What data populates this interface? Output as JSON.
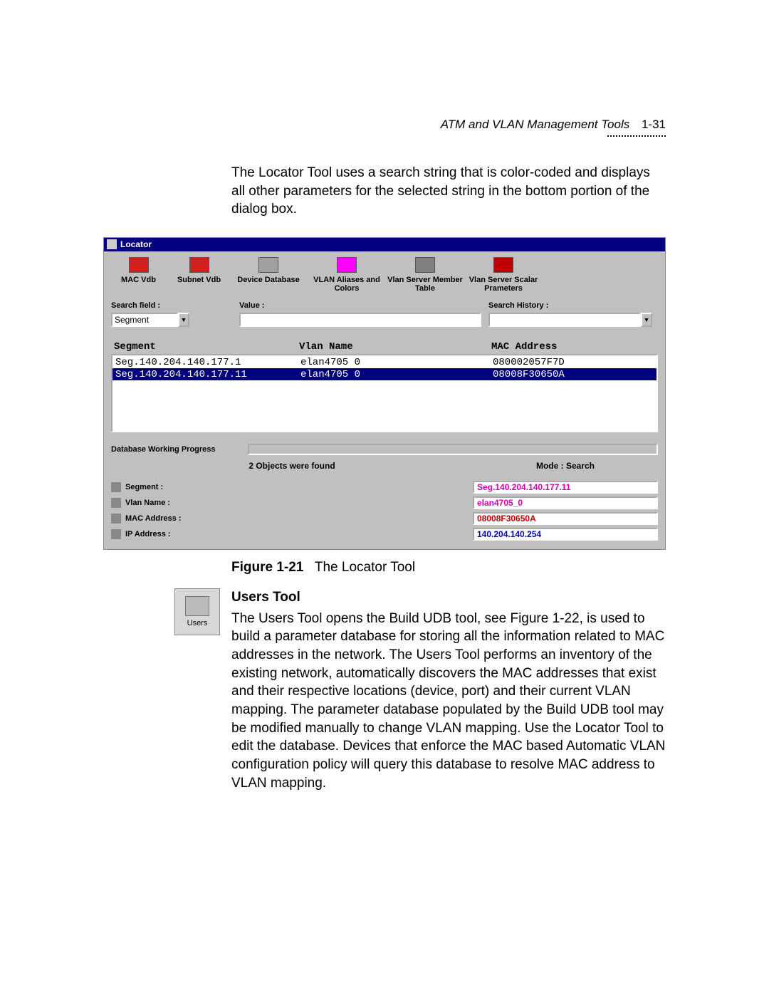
{
  "header": {
    "title": "ATM and VLAN Management Tools",
    "page": "1-31"
  },
  "intro": "The Locator Tool uses a search string that is color-coded and displays all other parameters for the selected string in the bottom portion of the dialog box.",
  "window": {
    "title": "Locator",
    "toolbar": [
      {
        "label": "MAC Vdb",
        "glyph_bg": "#d02020"
      },
      {
        "label": "Subnet Vdb",
        "glyph_bg": "#d02020"
      },
      {
        "label": "Device Database",
        "glyph_bg": "#a0a0a0"
      },
      {
        "label": "VLAN Aliases\nand Colors",
        "glyph_bg": "#ff00ff"
      },
      {
        "label": "Vlan Server\nMember Table",
        "glyph_bg": "#808080"
      },
      {
        "label": "Vlan Server\nScalar Prameters",
        "glyph_bg": "#c00000"
      }
    ],
    "search": {
      "field_label": "Search field :",
      "field_value": "Segment",
      "value_label": "Value :",
      "value_value": "",
      "history_label": "Search History :",
      "history_value": ""
    },
    "table": {
      "headers": {
        "c1": "Segment",
        "c2": "Vlan Name",
        "c3": "MAC Address"
      },
      "rows": [
        {
          "c1": "Seg.140.204.140.177.1",
          "c2": "elan4705 0",
          "c3": "080002057F7D",
          "selected": false
        },
        {
          "c1": "Seg.140.204.140.177.11",
          "c2": "elan4705 0",
          "c3": "08008F30650A",
          "selected": true
        }
      ]
    },
    "progress_label": "Database Working Progress",
    "status_left": "2 Objects were found",
    "status_right": "Mode : Search",
    "details": [
      {
        "label": "Segment :",
        "value": "Seg.140.204.140.177.11",
        "color": "#d800a8"
      },
      {
        "label": "Vlan Name :",
        "value": "elan4705_0",
        "color": "#d800a8"
      },
      {
        "label": "MAC Address :",
        "value": "08008F30650A",
        "color": "#c00000"
      },
      {
        "label": "IP Address :",
        "value": "140.204.140.254",
        "color": "#0000c0"
      }
    ]
  },
  "caption": {
    "label": "Figure 1-21",
    "text": "The Locator Tool"
  },
  "users": {
    "heading": "Users Tool",
    "icon_label": "Users",
    "body": "The Users Tool opens the Build UDB tool, see Figure 1-22, is used to build a parameter database for storing all the information related to MAC addresses in the network. The Users Tool performs an inventory of the existing network, automatically discovers the MAC addresses that exist and their respective locations (device, port) and their current VLAN mapping. The parameter database populated by the Build UDB tool may be modified manually to change VLAN mapping. Use the Locator Tool to edit the database. Devices that enforce the MAC based Automatic VLAN configuration policy will query this database to resolve MAC address to VLAN mapping."
  }
}
